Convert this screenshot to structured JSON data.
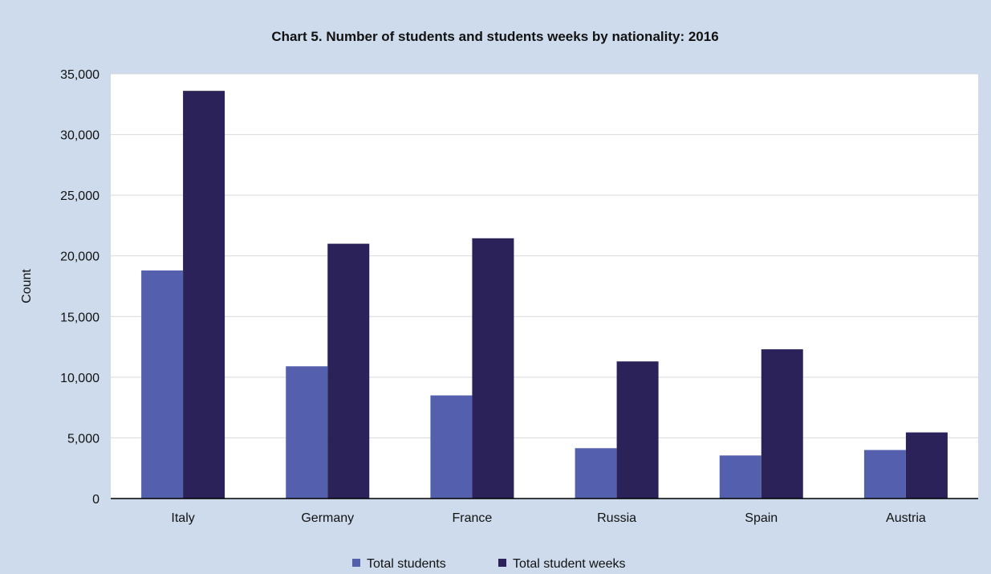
{
  "chart_data": {
    "type": "bar",
    "title": "Chart 5. Number of students and students weeks by nationality: 2016",
    "xlabel": "",
    "ylabel": "Count",
    "categories": [
      "Italy",
      "Germany",
      "France",
      "Russia",
      "Spain",
      "Austria"
    ],
    "series": [
      {
        "name": "Total students",
        "values": [
          18800,
          10900,
          8500,
          4150,
          3550,
          4000
        ],
        "color": "#5460ad"
      },
      {
        "name": "Total student weeks",
        "values": [
          33600,
          21000,
          21450,
          11300,
          12300,
          5450
        ],
        "color": "#2a2258"
      }
    ],
    "ylim": [
      0,
      35000
    ],
    "yticks": [
      "0",
      "5,000",
      "10,000",
      "15,000",
      "20,000",
      "25,000",
      "30,000",
      "35,000"
    ],
    "grid": true,
    "legend_position": "bottom",
    "plot_background": "#ffffff",
    "figure_background": "#cddbed"
  }
}
